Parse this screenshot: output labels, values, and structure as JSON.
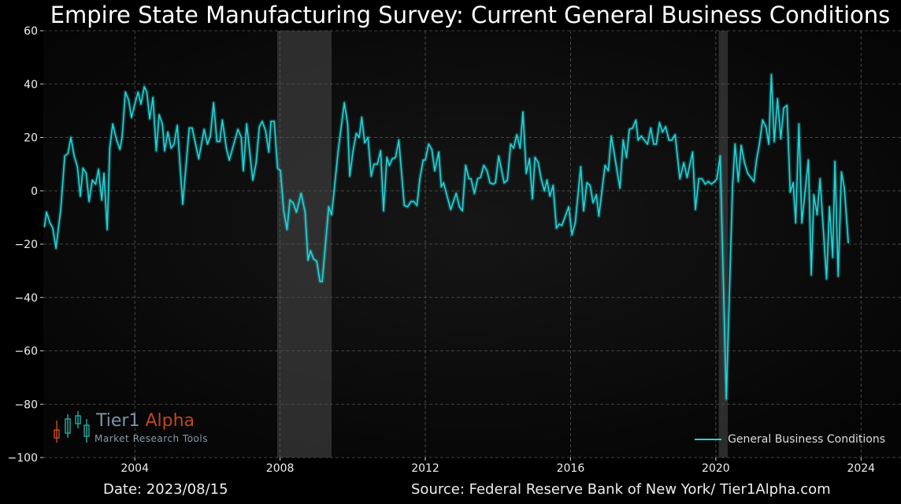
{
  "chart_data": {
    "type": "line",
    "title": "Empire State Manufacturing Survey: Current General Business Conditions",
    "xlabel": "",
    "ylabel": "",
    "xlim": [
      2001.48,
      2025.1
    ],
    "ylim": [
      -100,
      60
    ],
    "x_ticks": [
      2004,
      2008,
      2012,
      2016,
      2020,
      2024
    ],
    "y_ticks": [
      -100,
      -80,
      -60,
      -40,
      -20,
      0,
      20,
      40,
      60
    ],
    "y_tick_labels": [
      "−100",
      "−80",
      "−60",
      "−40",
      "−20",
      "0",
      "20",
      "40",
      "60"
    ],
    "grid": true,
    "legend_position": "bottom-right",
    "recession_bands": [
      [
        2007.92,
        2009.42
      ],
      [
        2020.08,
        2020.33
      ]
    ],
    "colors": {
      "line": "#22d3d8",
      "recession": "#3a3a3a",
      "background": "#000000",
      "grid": "#555555"
    },
    "series": [
      {
        "name": "General Business Conditions",
        "points": [
          [
            2001.51,
            -13.5
          ],
          [
            2001.57,
            -8
          ],
          [
            2001.66,
            -12
          ],
          [
            2001.74,
            -14
          ],
          [
            2001.83,
            -21.5
          ],
          [
            2001.96,
            -7
          ],
          [
            2002.07,
            13
          ],
          [
            2002.16,
            14
          ],
          [
            2002.24,
            20
          ],
          [
            2002.33,
            13
          ],
          [
            2002.42,
            9
          ],
          [
            2002.5,
            -2
          ],
          [
            2002.57,
            8.5
          ],
          [
            2002.66,
            6.5
          ],
          [
            2002.74,
            -4
          ],
          [
            2002.83,
            4
          ],
          [
            2002.92,
            2.5
          ],
          [
            2003.0,
            8
          ],
          [
            2003.09,
            -3.5
          ],
          [
            2003.15,
            6.5
          ],
          [
            2003.24,
            -14.5
          ],
          [
            2003.31,
            16
          ],
          [
            2003.39,
            25
          ],
          [
            2003.5,
            19
          ],
          [
            2003.59,
            15.5
          ],
          [
            2003.65,
            20
          ],
          [
            2003.74,
            37
          ],
          [
            2003.83,
            34
          ],
          [
            2003.91,
            27.5
          ],
          [
            2004.0,
            32.5
          ],
          [
            2004.09,
            37
          ],
          [
            2004.17,
            32.5
          ],
          [
            2004.26,
            39
          ],
          [
            2004.33,
            37
          ],
          [
            2004.41,
            27
          ],
          [
            2004.5,
            35
          ],
          [
            2004.59,
            15
          ],
          [
            2004.67,
            28.5
          ],
          [
            2004.76,
            25
          ],
          [
            2004.82,
            15
          ],
          [
            2004.91,
            22
          ],
          [
            2005.0,
            16
          ],
          [
            2005.08,
            17.5
          ],
          [
            2005.17,
            24.5
          ],
          [
            2005.32,
            -5
          ],
          [
            2005.5,
            23.5
          ],
          [
            2005.58,
            23.5
          ],
          [
            2005.76,
            12
          ],
          [
            2005.91,
            23
          ],
          [
            2006.0,
            17.5
          ],
          [
            2006.08,
            20.5
          ],
          [
            2006.17,
            33
          ],
          [
            2006.26,
            18.5
          ],
          [
            2006.34,
            18.5
          ],
          [
            2006.41,
            26.5
          ],
          [
            2006.52,
            16
          ],
          [
            2006.6,
            11.5
          ],
          [
            2006.84,
            23
          ],
          [
            2006.93,
            20
          ],
          [
            2006.99,
            7.5
          ],
          [
            2007.08,
            25
          ],
          [
            2007.25,
            4
          ],
          [
            2007.34,
            10.5
          ],
          [
            2007.43,
            24
          ],
          [
            2007.51,
            26
          ],
          [
            2007.6,
            22.5
          ],
          [
            2007.69,
            14.5
          ],
          [
            2007.75,
            26
          ],
          [
            2007.84,
            26
          ],
          [
            2007.93,
            8.5
          ],
          [
            2008.01,
            7.5
          ],
          [
            2008.1,
            -7.5
          ],
          [
            2008.19,
            -14.5
          ],
          [
            2008.27,
            -3.5
          ],
          [
            2008.36,
            -4.5
          ],
          [
            2008.45,
            -8
          ],
          [
            2008.58,
            -1
          ],
          [
            2008.69,
            -8
          ],
          [
            2008.77,
            -26
          ],
          [
            2008.84,
            -22.5
          ],
          [
            2008.92,
            -25.5
          ],
          [
            2009.01,
            -26.5
          ],
          [
            2009.1,
            -34
          ],
          [
            2009.16,
            -34
          ],
          [
            2009.34,
            -6
          ],
          [
            2009.42,
            -9
          ],
          [
            2009.6,
            15
          ],
          [
            2009.77,
            33
          ],
          [
            2009.86,
            25
          ],
          [
            2009.92,
            5.5
          ],
          [
            2010.01,
            15
          ],
          [
            2010.1,
            21.5
          ],
          [
            2010.18,
            20
          ],
          [
            2010.25,
            27.5
          ],
          [
            2010.33,
            18
          ],
          [
            2010.42,
            20
          ],
          [
            2010.51,
            5.5
          ],
          [
            2010.59,
            10
          ],
          [
            2010.68,
            10
          ],
          [
            2010.77,
            15
          ],
          [
            2010.85,
            -7.5
          ],
          [
            2010.94,
            12.5
          ],
          [
            2011.01,
            9.5
          ],
          [
            2011.09,
            12
          ],
          [
            2011.18,
            12.5
          ],
          [
            2011.27,
            19
          ],
          [
            2011.42,
            -5.5
          ],
          [
            2011.51,
            -6
          ],
          [
            2011.61,
            -4
          ],
          [
            2011.68,
            -4
          ],
          [
            2011.77,
            -5.5
          ],
          [
            2011.85,
            4.5
          ],
          [
            2011.94,
            11.5
          ],
          [
            2012.0,
            11.5
          ],
          [
            2012.09,
            17.5
          ],
          [
            2012.18,
            15.5
          ],
          [
            2012.26,
            7.5
          ],
          [
            2012.37,
            14.5
          ],
          [
            2012.44,
            1.5
          ],
          [
            2012.5,
            3
          ],
          [
            2012.7,
            -7
          ],
          [
            2012.85,
            -1
          ],
          [
            2012.94,
            -6
          ],
          [
            2013.02,
            -7.5
          ],
          [
            2013.11,
            9.5
          ],
          [
            2013.2,
            4.5
          ],
          [
            2013.26,
            4.5
          ],
          [
            2013.35,
            -1
          ],
          [
            2013.44,
            4.5
          ],
          [
            2013.52,
            5
          ],
          [
            2013.61,
            9.5
          ],
          [
            2013.7,
            7.5
          ],
          [
            2013.78,
            3
          ],
          [
            2013.87,
            2.5
          ],
          [
            2013.93,
            3
          ],
          [
            2014.02,
            13
          ],
          [
            2014.17,
            3
          ],
          [
            2014.26,
            4
          ],
          [
            2014.35,
            17.5
          ],
          [
            2014.43,
            16
          ],
          [
            2014.52,
            21
          ],
          [
            2014.61,
            16
          ],
          [
            2014.69,
            29.5
          ],
          [
            2014.78,
            6.5
          ],
          [
            2014.87,
            12
          ],
          [
            2014.95,
            -3
          ],
          [
            2015.02,
            12.5
          ],
          [
            2015.11,
            10.5
          ],
          [
            2015.19,
            4.5
          ],
          [
            2015.28,
            0
          ],
          [
            2015.35,
            4
          ],
          [
            2015.43,
            -2
          ],
          [
            2015.52,
            2
          ],
          [
            2015.61,
            -14
          ],
          [
            2015.69,
            -12.5
          ],
          [
            2015.76,
            -13
          ],
          [
            2015.95,
            -6
          ],
          [
            2016.04,
            -16.5
          ],
          [
            2016.13,
            -12
          ],
          [
            2016.28,
            9
          ],
          [
            2016.36,
            -7.5
          ],
          [
            2016.45,
            3
          ],
          [
            2016.54,
            2
          ],
          [
            2016.62,
            -4.5
          ],
          [
            2016.71,
            -1.5
          ],
          [
            2016.78,
            -9.5
          ],
          [
            2016.95,
            9.5
          ],
          [
            2017.04,
            7.5
          ],
          [
            2017.12,
            20.5
          ],
          [
            2017.19,
            15
          ],
          [
            2017.36,
            1
          ],
          [
            2017.45,
            19
          ],
          [
            2017.54,
            12.5
          ],
          [
            2017.62,
            23
          ],
          [
            2017.71,
            23.5
          ],
          [
            2017.8,
            26.5
          ],
          [
            2017.86,
            19
          ],
          [
            2017.95,
            20.5
          ],
          [
            2018.03,
            19
          ],
          [
            2018.12,
            17.5
          ],
          [
            2018.21,
            23.5
          ],
          [
            2018.29,
            17.5
          ],
          [
            2018.36,
            17.5
          ],
          [
            2018.45,
            25.5
          ],
          [
            2018.53,
            22
          ],
          [
            2018.62,
            24
          ],
          [
            2018.71,
            19
          ],
          [
            2018.79,
            19
          ],
          [
            2018.88,
            21
          ],
          [
            2019.01,
            4.5
          ],
          [
            2019.12,
            10.5
          ],
          [
            2019.21,
            5
          ],
          [
            2019.36,
            14.5
          ],
          [
            2019.44,
            -7
          ],
          [
            2019.53,
            4.5
          ],
          [
            2019.62,
            4.5
          ],
          [
            2019.71,
            2.5
          ],
          [
            2019.79,
            3.5
          ],
          [
            2019.88,
            2.5
          ],
          [
            2019.97,
            3.5
          ],
          [
            2020.03,
            4.5
          ],
          [
            2020.12,
            13
          ],
          [
            2020.29,
            -78
          ],
          [
            2020.46,
            1.5
          ],
          [
            2020.53,
            17.5
          ],
          [
            2020.62,
            3.5
          ],
          [
            2020.7,
            17
          ],
          [
            2020.79,
            10.5
          ],
          [
            2020.88,
            6.5
          ],
          [
            2021.05,
            3.5
          ],
          [
            2021.12,
            11.5
          ],
          [
            2021.2,
            17.5
          ],
          [
            2021.29,
            26.5
          ],
          [
            2021.38,
            24
          ],
          [
            2021.46,
            17.5
          ],
          [
            2021.53,
            43.5
          ],
          [
            2021.61,
            18.5
          ],
          [
            2021.7,
            34.5
          ],
          [
            2021.79,
            19.5
          ],
          [
            2021.87,
            31
          ],
          [
            2021.96,
            32
          ],
          [
            2022.05,
            -0.5
          ],
          [
            2022.13,
            3
          ],
          [
            2022.2,
            -12
          ],
          [
            2022.29,
            25
          ],
          [
            2022.37,
            -12
          ],
          [
            2022.55,
            11.5
          ],
          [
            2022.63,
            -31.5
          ],
          [
            2022.7,
            -1.5
          ],
          [
            2022.79,
            -9
          ],
          [
            2022.87,
            4.5
          ],
          [
            2023.05,
            -33
          ],
          [
            2023.13,
            -6
          ],
          [
            2023.22,
            -25
          ],
          [
            2023.28,
            11
          ],
          [
            2023.37,
            -32
          ],
          [
            2023.46,
            7
          ],
          [
            2023.54,
            1
          ],
          [
            2023.65,
            -19.5
          ]
        ]
      }
    ]
  },
  "footer": {
    "date": "Date: 2023/08/15",
    "source": "Source: Federal Reserve Bank of New York/ Tier1Alpha.com"
  },
  "logo": {
    "name_part1": "Tier1",
    "name_part2": "Alpha",
    "tagline": "Market  Research Tools",
    "colors": {
      "part1": "#7f93a8",
      "part2": "#c0461b"
    }
  }
}
